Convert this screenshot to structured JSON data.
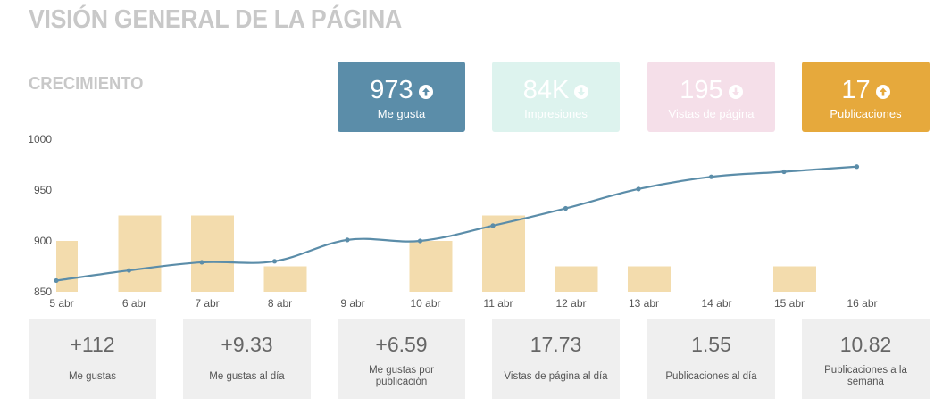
{
  "header": {
    "title": "VISIÓN GENERAL DE LA PÁGINA"
  },
  "section": {
    "title": "CRECIMIENTO"
  },
  "kpis": [
    {
      "value": "973",
      "label": "Me gusta",
      "trend": "up",
      "color": "#5b8da9"
    },
    {
      "value": "84K",
      "label": "Impresiones",
      "trend": "down",
      "color": "#ddf3ee"
    },
    {
      "value": "195",
      "label": "Vistas de página",
      "trend": "down",
      "color": "#f5dfe9"
    },
    {
      "value": "17",
      "label": "Publicaciones",
      "trend": "up",
      "color": "#e6a93c"
    }
  ],
  "stats": [
    {
      "value": "+112",
      "label": "Me gustas"
    },
    {
      "value": "+9.33",
      "label": "Me gustas al día"
    },
    {
      "value": "+6.59",
      "label": "Me gustas por publicación"
    },
    {
      "value": "17.73",
      "label": "Vistas de página al día"
    },
    {
      "value": "1.55",
      "label": "Publicaciones al día"
    },
    {
      "value": "10.82",
      "label": "Publicaciones a la semana"
    }
  ],
  "chart_data": {
    "type": "line",
    "categories": [
      "5 abr",
      "6 abr",
      "7 abr",
      "8 abr",
      "9 abr",
      "10 abr",
      "11 abr",
      "12 abr",
      "13 abr",
      "14 abr",
      "15 abr",
      "16 abr"
    ],
    "ylim": [
      850,
      1000
    ],
    "yticks": [
      850,
      900,
      950,
      1000
    ],
    "grid": false,
    "series": [
      {
        "type": "line",
        "values": [
          861,
          871,
          879,
          880,
          901,
          900,
          915,
          932,
          951,
          963,
          968,
          973
        ],
        "color": "#5b8da9"
      },
      {
        "type": "bar",
        "values": [
          900,
          925,
          925,
          875,
          null,
          900,
          925,
          875,
          875,
          null,
          875,
          null
        ],
        "color": "#f3dcad"
      }
    ]
  }
}
